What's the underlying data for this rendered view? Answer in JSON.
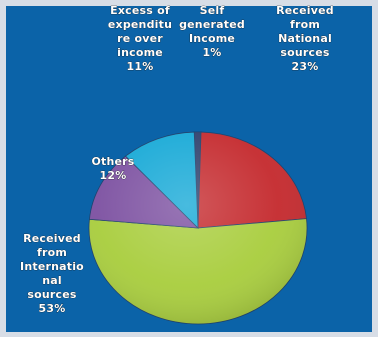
{
  "chart_data": {
    "type": "pie",
    "title": "",
    "slices": [
      {
        "label_lines": [
          "Self",
          "generated",
          "Income",
          "1%"
        ],
        "value": 1,
        "color": "#2c3e6b"
      },
      {
        "label_lines": [
          "Received",
          "from",
          "National",
          "sources",
          "23%"
        ],
        "value": 23,
        "color": "#c4282c"
      },
      {
        "label_lines": [
          "Received",
          "from",
          "Internatio",
          "nal",
          "sources",
          "53%"
        ],
        "value": 53,
        "color": "#a8cd3c"
      },
      {
        "label_lines": [
          "Others",
          "12%"
        ],
        "value": 12,
        "color": "#7b4fa0"
      },
      {
        "label_lines": [
          "Excess of",
          "expenditu",
          "re over",
          "income",
          "11%"
        ],
        "value": 11,
        "color": "#14a8d6"
      }
    ]
  }
}
